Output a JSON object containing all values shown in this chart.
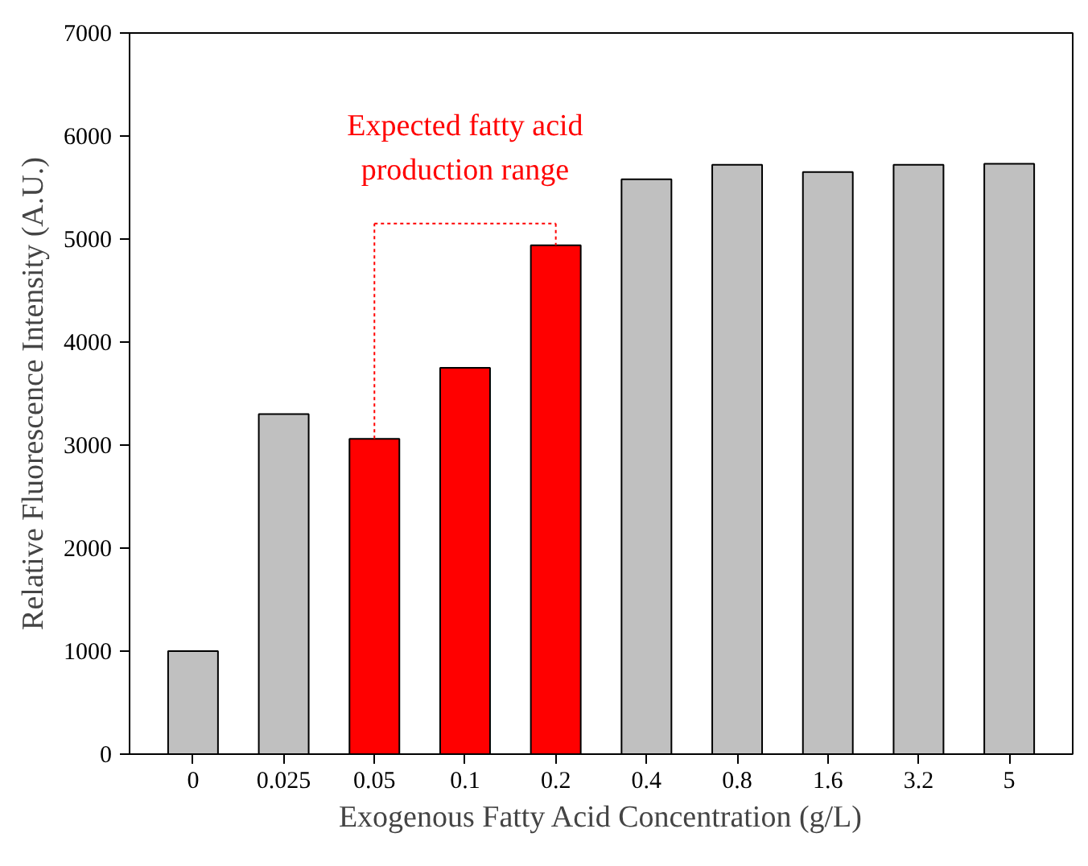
{
  "chart_data": {
    "type": "bar",
    "xlabel": "Exogenous Fatty Acid Concentration (g/L)",
    "ylabel": "Relative Fluorescence Intensity (A.U.)",
    "categories": [
      "0",
      "0.025",
      "0.05",
      "0.1",
      "0.2",
      "0.4",
      "0.8",
      "1.6",
      "3.2",
      "5"
    ],
    "values": [
      1000,
      3300,
      3060,
      3750,
      4940,
      5580,
      5720,
      5650,
      5720,
      5730
    ],
    "colors": [
      "#c0c0c0",
      "#c0c0c0",
      "#ff0000",
      "#ff0000",
      "#ff0000",
      "#c0c0c0",
      "#c0c0c0",
      "#c0c0c0",
      "#c0c0c0",
      "#c0c0c0"
    ],
    "ylim": [
      0,
      7000
    ],
    "yticks": [
      0,
      1000,
      2000,
      3000,
      4000,
      5000,
      6000,
      7000
    ],
    "grid": false,
    "annotations": [
      {
        "text": "Expected fatty acid\nproduction range",
        "x": "0.2",
        "y": 4940
      }
    ]
  }
}
